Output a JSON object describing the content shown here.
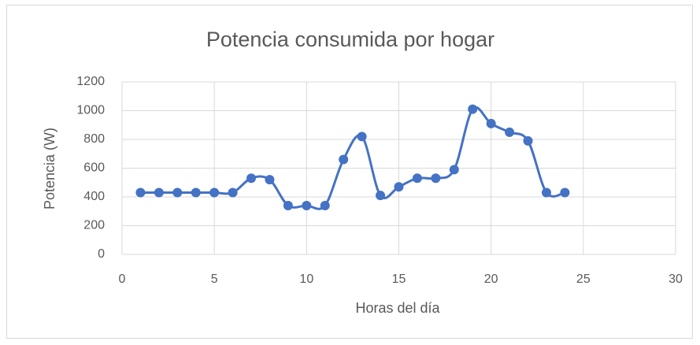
{
  "chart_data": {
    "type": "scatter",
    "title": "Potencia consumida por hogar",
    "xlabel": "Horas del día",
    "ylabel": "Potencia (W)",
    "x": [
      1,
      2,
      3,
      4,
      5,
      6,
      7,
      8,
      9,
      10,
      11,
      12,
      13,
      14,
      15,
      16,
      17,
      18,
      19,
      20,
      21,
      22,
      23,
      24
    ],
    "series": [
      {
        "name": "Potencia",
        "color": "#4472c4",
        "values": [
          430,
          430,
          430,
          430,
          430,
          430,
          530,
          520,
          340,
          340,
          340,
          660,
          820,
          410,
          470,
          530,
          530,
          590,
          1010,
          910,
          850,
          790,
          430,
          430
        ]
      }
    ],
    "smooth": true,
    "xlim": [
      0,
      30
    ],
    "xticks": [
      0,
      5,
      10,
      15,
      20,
      25,
      30
    ],
    "ylim": [
      0,
      1200
    ],
    "yticks": [
      0,
      200,
      400,
      600,
      800,
      1000,
      1200
    ],
    "grid": true
  }
}
